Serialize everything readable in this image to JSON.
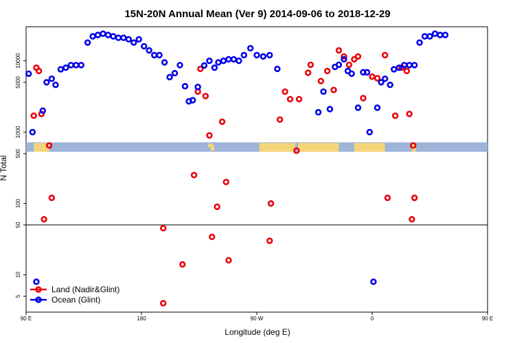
{
  "chart_data": {
    "type": "scatter",
    "title": "15N-20N Annual Mean (Ver 9)   2014-09-06 to 2018-12-29",
    "xlabel": "Longitude (deg E)",
    "ylabel": "N Total",
    "xlim": [
      90,
      450
    ],
    "ylim": [
      3,
      30000
    ],
    "y_scale": "log",
    "grid": false,
    "x_ticks": [
      {
        "value": 90,
        "label": "90 E"
      },
      {
        "value": 180,
        "label": "180"
      },
      {
        "value": 270,
        "label": "90 W"
      },
      {
        "value": 360,
        "label": "0"
      },
      {
        "value": 450,
        "label": "90 E"
      },
      {
        "value": 540,
        "label": "180"
      }
    ],
    "y_ticks": [
      {
        "value": 5,
        "label": "5"
      },
      {
        "value": 10,
        "label": "10"
      },
      {
        "value": 50,
        "label": "50"
      },
      {
        "value": 100,
        "label": "100"
      },
      {
        "value": 500,
        "label": "500"
      },
      {
        "value": 1000,
        "label": "1000"
      },
      {
        "value": 5000,
        "label": "5000"
      },
      {
        "value": 10000,
        "label": "10000"
      }
    ],
    "reference_lines": [
      50
    ],
    "map_strip": {
      "y_range": [
        530,
        720
      ],
      "ocean_color": "#9db4d8",
      "land_color": "#f5d57a"
    },
    "legend_position": "bottom-left",
    "series": [
      {
        "name": "Land (Nadir&Glint)",
        "color": "#e8000b",
        "points": [
          [
            96,
            1700
          ],
          [
            98,
            8000
          ],
          [
            100,
            7200
          ],
          [
            102,
            1800
          ],
          [
            104,
            60
          ],
          [
            108,
            650
          ],
          [
            110,
            120
          ],
          [
            197,
            45
          ],
          [
            197,
            4
          ],
          [
            212,
            14
          ],
          [
            221,
            250
          ],
          [
            224,
            3700
          ],
          [
            226,
            7700
          ],
          [
            230,
            3200
          ],
          [
            233,
            900
          ],
          [
            235,
            34
          ],
          [
            239,
            90
          ],
          [
            243,
            1400
          ],
          [
            246,
            200
          ],
          [
            248,
            16
          ],
          [
            280,
            30
          ],
          [
            281,
            100
          ],
          [
            288,
            1500
          ],
          [
            292,
            3700
          ],
          [
            296,
            2900
          ],
          [
            301,
            550
          ],
          [
            303,
            2900
          ],
          [
            310,
            6800
          ],
          [
            312,
            8800
          ],
          [
            320,
            5200
          ],
          [
            325,
            7200
          ],
          [
            330,
            3900
          ],
          [
            334,
            14000
          ],
          [
            338,
            11500
          ],
          [
            342,
            8800
          ],
          [
            346,
            10500
          ],
          [
            349,
            11500
          ],
          [
            353,
            3000
          ],
          [
            360,
            6000
          ],
          [
            364,
            5700
          ],
          [
            370,
            12000
          ],
          [
            372,
            120
          ],
          [
            378,
            1700
          ],
          [
            383,
            8000
          ],
          [
            387,
            7200
          ],
          [
            389,
            1800
          ],
          [
            391,
            60
          ],
          [
            392,
            650
          ],
          [
            393,
            120
          ]
        ]
      },
      {
        "name": "Ocean (Glint)",
        "color": "#0000e6",
        "points": [
          [
            92,
            6600
          ],
          [
            95,
            1000
          ],
          [
            98,
            8
          ],
          [
            103,
            2000
          ],
          [
            106,
            5000
          ],
          [
            110,
            5600
          ],
          [
            113,
            4600
          ],
          [
            117,
            7600
          ],
          [
            121,
            8000
          ],
          [
            125,
            8700
          ],
          [
            129,
            8700
          ],
          [
            133,
            8700
          ],
          [
            138,
            18000
          ],
          [
            142,
            22000
          ],
          [
            146,
            23000
          ],
          [
            150,
            24000
          ],
          [
            154,
            23000
          ],
          [
            158,
            22000
          ],
          [
            162,
            21000
          ],
          [
            166,
            21000
          ],
          [
            170,
            20000
          ],
          [
            174,
            18000
          ],
          [
            178,
            20000
          ],
          [
            182,
            16000
          ],
          [
            186,
            14000
          ],
          [
            190,
            12000
          ],
          [
            194,
            12000
          ],
          [
            198,
            9500
          ],
          [
            202,
            5900
          ],
          [
            206,
            6700
          ],
          [
            210,
            8700
          ],
          [
            214,
            4400
          ],
          [
            217,
            2700
          ],
          [
            220,
            2800
          ],
          [
            224,
            4300
          ],
          [
            229,
            8600
          ],
          [
            233,
            10000
          ],
          [
            237,
            8000
          ],
          [
            240,
            9500
          ],
          [
            244,
            10000
          ],
          [
            248,
            10500
          ],
          [
            252,
            10500
          ],
          [
            256,
            10000
          ],
          [
            260,
            12000
          ],
          [
            265,
            15000
          ],
          [
            270,
            12000
          ],
          [
            275,
            11500
          ],
          [
            280,
            12000
          ],
          [
            286,
            7700
          ],
          [
            318,
            1900
          ],
          [
            322,
            3700
          ],
          [
            327,
            2100
          ],
          [
            331,
            8200
          ],
          [
            334,
            8800
          ],
          [
            338,
            10500
          ],
          [
            341,
            7200
          ],
          [
            344,
            6600
          ],
          [
            349,
            2200
          ],
          [
            353,
            6900
          ],
          [
            356,
            6900
          ],
          [
            358,
            1000
          ],
          [
            361,
            8
          ],
          [
            364,
            2200
          ],
          [
            367,
            5000
          ],
          [
            370,
            5600
          ],
          [
            374,
            4600
          ],
          [
            377,
            7600
          ],
          [
            381,
            8000
          ],
          [
            385,
            8700
          ],
          [
            389,
            8700
          ],
          [
            393,
            8700
          ],
          [
            397,
            18000
          ],
          [
            401,
            22000
          ],
          [
            405,
            22000
          ],
          [
            409,
            24000
          ],
          [
            413,
            23000
          ],
          [
            417,
            23000
          ]
        ]
      }
    ]
  }
}
